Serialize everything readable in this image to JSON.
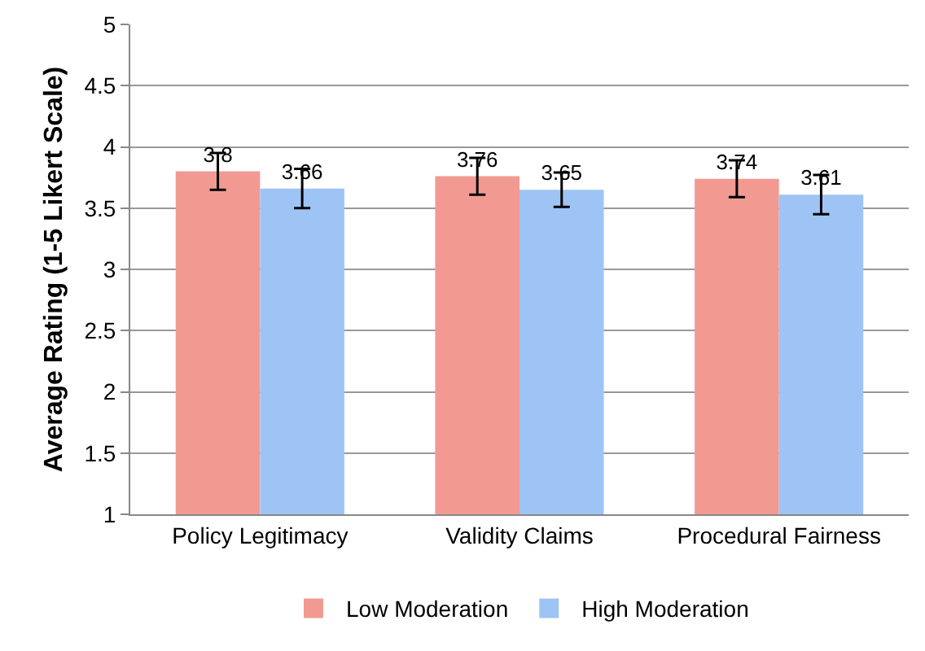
{
  "chart_data": {
    "type": "bar",
    "ylabel": "Average Rating (1-5 Likert Scale)",
    "categories": [
      "Policy Legitimacy",
      "Validity Claims",
      "Procedural Fairness"
    ],
    "series": [
      {
        "name": "Low Moderation",
        "color": "#f29a92",
        "values": [
          3.8,
          3.76,
          3.74
        ],
        "errors": [
          0.15,
          0.15,
          0.15
        ]
      },
      {
        "name": "High Moderation",
        "color": "#9ec4f5",
        "values": [
          3.66,
          3.65,
          3.61
        ],
        "errors": [
          0.16,
          0.14,
          0.16
        ]
      }
    ],
    "ylim": [
      1,
      5
    ],
    "yticks": [
      1,
      1.5,
      2,
      2.5,
      3,
      3.5,
      4,
      4.5,
      5
    ],
    "grid": "y",
    "legend": "bottom",
    "data_labels": true
  }
}
